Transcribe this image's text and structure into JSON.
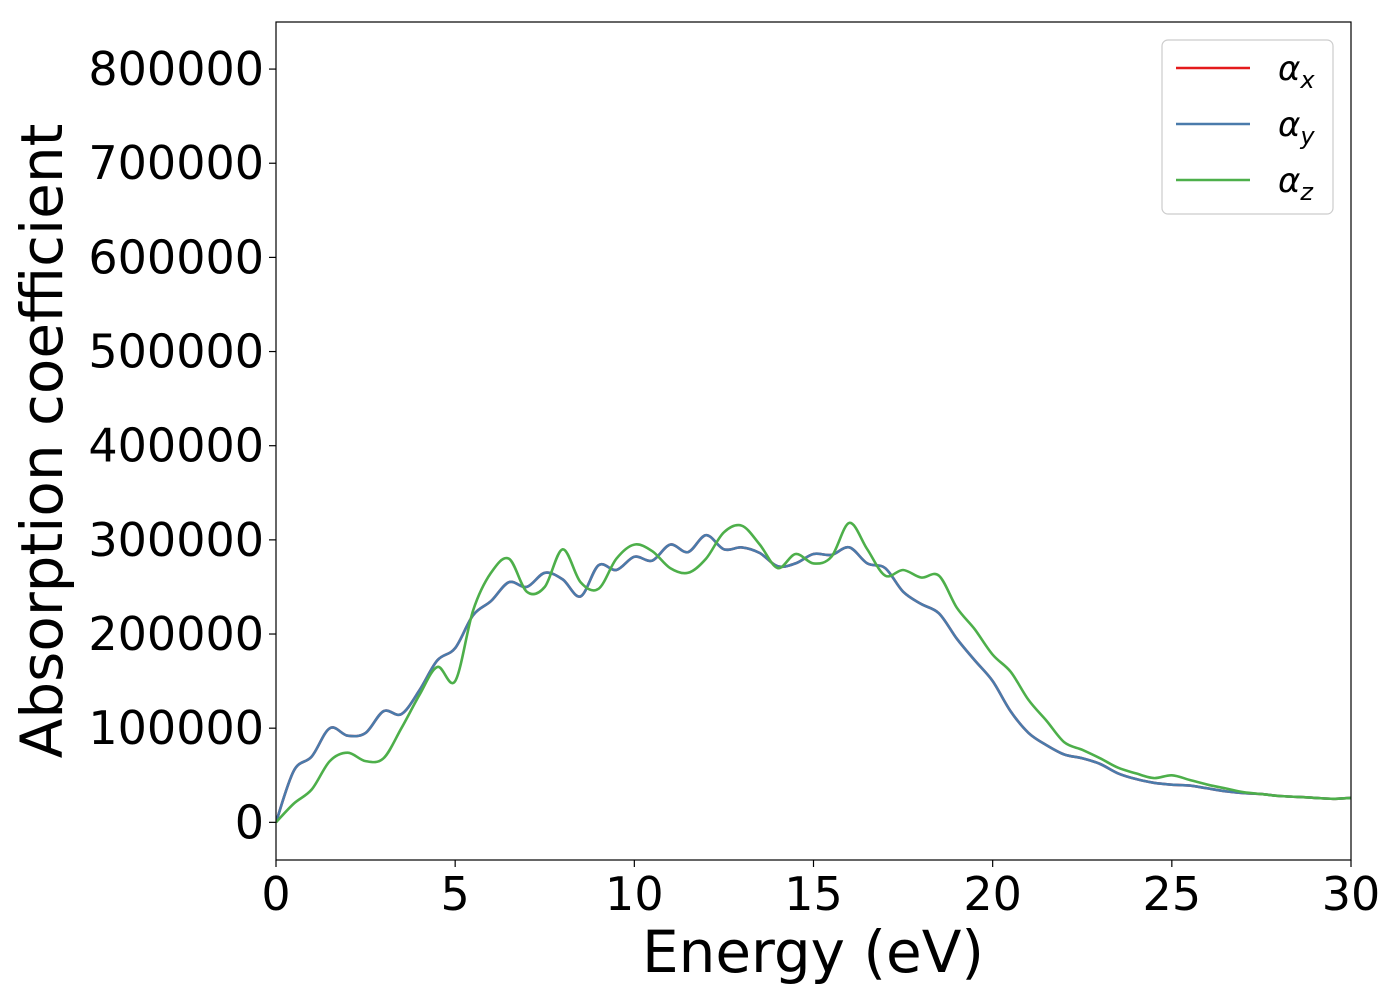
{
  "chart_data": {
    "type": "line",
    "title": "",
    "xlabel": "Energy (eV)",
    "ylabel": "Absorption coefficient",
    "xlim": [
      0,
      30
    ],
    "ylim": [
      -40000,
      850000
    ],
    "xticks": [
      0,
      5,
      10,
      15,
      20,
      25,
      30
    ],
    "xtick_labels": [
      "0",
      "5",
      "10",
      "15",
      "20",
      "25",
      "30"
    ],
    "yticks": [
      0,
      100000,
      200000,
      300000,
      400000,
      500000,
      600000,
      700000,
      800000
    ],
    "ytick_labels": [
      "0",
      "100000",
      "200000",
      "300000",
      "400000",
      "500000",
      "600000",
      "700000",
      "800000"
    ],
    "grid": false,
    "legend_position": "top-right",
    "x": [
      0,
      0.5,
      1,
      1.5,
      2,
      2.5,
      3,
      3.5,
      4,
      4.5,
      5,
      5.5,
      6,
      6.5,
      7,
      7.5,
      8,
      8.5,
      9,
      9.5,
      10,
      10.5,
      11,
      11.5,
      12,
      12.5,
      13,
      13.5,
      14,
      14.5,
      15,
      15.5,
      16,
      16.5,
      17,
      17.5,
      18,
      18.5,
      19,
      19.5,
      20,
      20.5,
      21,
      21.5,
      22,
      22.5,
      23,
      23.5,
      24,
      24.5,
      25,
      25.5,
      26,
      26.5,
      27,
      27.5,
      28,
      28.5,
      29,
      29.5,
      30
    ],
    "series": [
      {
        "name": "α",
        "subscript": "x",
        "color": "#e41a1c",
        "values": [
          0,
          55000,
          70000,
          100000,
          92000,
          95000,
          118000,
          115000,
          140000,
          172000,
          185000,
          220000,
          235000,
          255000,
          250000,
          265000,
          258000,
          240000,
          273000,
          268000,
          282000,
          278000,
          295000,
          287000,
          305000,
          290000,
          292000,
          286000,
          272000,
          275000,
          285000,
          284000,
          292000,
          275000,
          270000,
          245000,
          232000,
          222000,
          195000,
          172000,
          150000,
          118000,
          95000,
          82000,
          72000,
          68000,
          62000,
          52000,
          46000,
          42000,
          40000,
          39000,
          36000,
          33000,
          31000,
          30000,
          28000,
          27000,
          26000,
          25000,
          26000
        ]
      },
      {
        "name": "α",
        "subscript": "y",
        "color": "#4a7bab",
        "values": [
          0,
          55000,
          70000,
          100000,
          92000,
          95000,
          118000,
          115000,
          140000,
          172000,
          185000,
          220000,
          235000,
          255000,
          250000,
          265000,
          258000,
          240000,
          273000,
          268000,
          282000,
          278000,
          295000,
          287000,
          305000,
          290000,
          292000,
          286000,
          272000,
          275000,
          285000,
          284000,
          292000,
          275000,
          270000,
          245000,
          232000,
          222000,
          195000,
          172000,
          150000,
          118000,
          95000,
          82000,
          72000,
          68000,
          62000,
          52000,
          46000,
          42000,
          40000,
          39000,
          36000,
          33000,
          31000,
          30000,
          28000,
          27000,
          26000,
          25000,
          26000
        ]
      },
      {
        "name": "α",
        "subscript": "z",
        "color": "#4daf4a",
        "values": [
          0,
          20000,
          35000,
          65000,
          74000,
          65000,
          68000,
          100000,
          135000,
          165000,
          150000,
          225000,
          265000,
          280000,
          245000,
          250000,
          290000,
          255000,
          248000,
          280000,
          295000,
          288000,
          270000,
          265000,
          280000,
          308000,
          315000,
          295000,
          270000,
          285000,
          275000,
          282000,
          318000,
          290000,
          262000,
          268000,
          260000,
          262000,
          228000,
          205000,
          178000,
          160000,
          130000,
          108000,
          85000,
          77000,
          68000,
          58000,
          52000,
          47000,
          50000,
          45000,
          40000,
          36000,
          32000,
          30000,
          28000,
          27000,
          26000,
          25000,
          26000
        ]
      }
    ]
  }
}
